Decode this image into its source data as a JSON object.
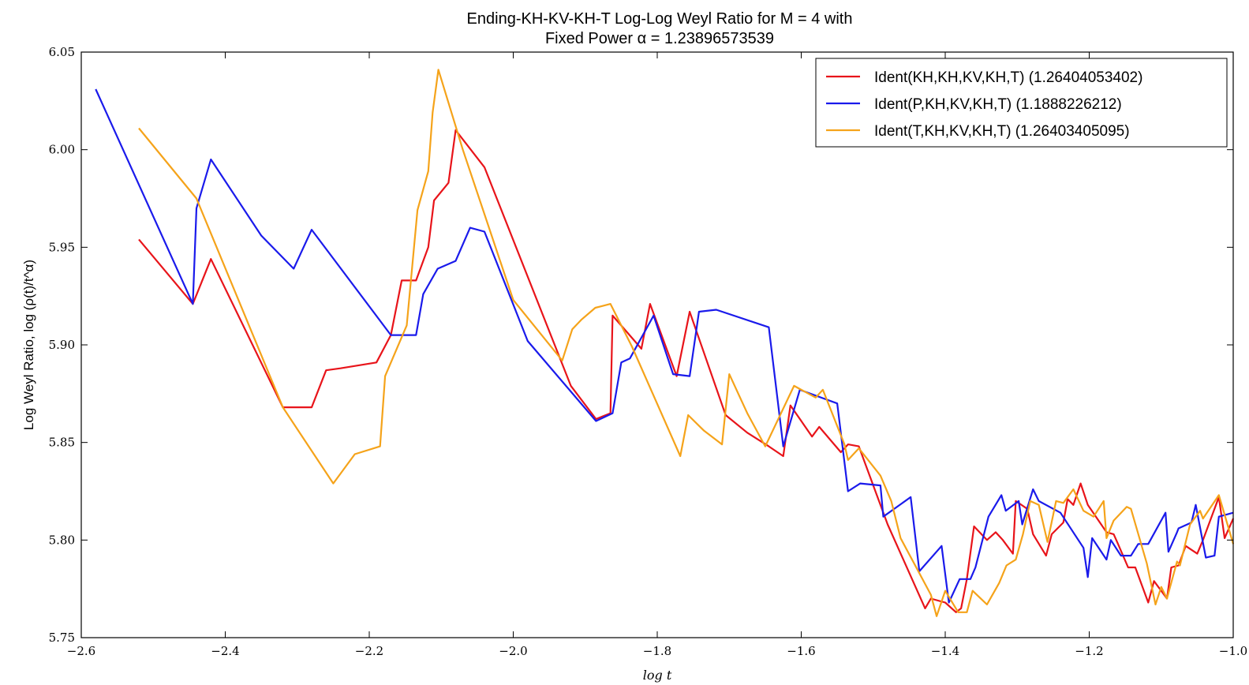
{
  "chart_data": {
    "type": "line",
    "title": "Ending-KH-KV-KH-T Log-Log Weyl Ratio for M = 4 with",
    "subtitle": "Fixed Power α = 1.23896573539",
    "xlabel": "log t",
    "ylabel": "Log Weyl Ratio, log (ρ(t)/t^α)",
    "xlim": [
      -2.6,
      -1.0
    ],
    "ylim": [
      5.75,
      6.05
    ],
    "xticks": [
      -2.6,
      -2.4,
      -2.2,
      -2.0,
      -1.8,
      -1.6,
      -1.4,
      -1.2,
      -1.0
    ],
    "xtick_labels": [
      "−2.6",
      "−2.4",
      "−2.2",
      "−2.0",
      "−1.8",
      "−1.6",
      "−1.4",
      "−1.2",
      "−1.0"
    ],
    "yticks": [
      5.75,
      5.8,
      5.85,
      5.9,
      5.95,
      6.0,
      6.05
    ],
    "ytick_labels": [
      "5.75",
      "5.80",
      "5.85",
      "5.90",
      "5.95",
      "6.00",
      "6.05"
    ],
    "grid": false,
    "legend_position": "top-right",
    "series": [
      {
        "name": "Ident(KH,KH,KV,KH,T) (1.26404053402)",
        "color": "#e8141a",
        "x": [
          -2.52,
          -2.445,
          -2.42,
          -2.32,
          -2.28,
          -2.26,
          -2.24,
          -2.19,
          -2.17,
          -2.155,
          -2.135,
          -2.118,
          -2.11,
          -2.09,
          -2.08,
          -2.04,
          -1.92,
          -1.885,
          -1.865,
          -1.862,
          -1.822,
          -1.81,
          -1.773,
          -1.755,
          -1.705,
          -1.675,
          -1.645,
          -1.625,
          -1.615,
          -1.585,
          -1.575,
          -1.545,
          -1.535,
          -1.52,
          -1.48,
          -1.428,
          -1.42,
          -1.4,
          -1.385,
          -1.378,
          -1.37,
          -1.36,
          -1.342,
          -1.33,
          -1.32,
          -1.306,
          -1.302,
          -1.286,
          -1.278,
          -1.26,
          -1.252,
          -1.236,
          -1.23,
          -1.222,
          -1.212,
          -1.202,
          -1.176,
          -1.166,
          -1.16,
          -1.146,
          -1.136,
          -1.118,
          -1.11,
          -1.092,
          -1.086,
          -1.076,
          -1.066,
          -1.05,
          -1.042,
          -1.02,
          -1.012,
          -1.0
        ],
        "y": [
          5.954,
          5.921,
          5.944,
          5.868,
          5.868,
          5.887,
          5.888,
          5.891,
          5.905,
          5.933,
          5.933,
          5.95,
          5.974,
          5.983,
          6.01,
          5.991,
          5.879,
          5.862,
          5.865,
          5.915,
          5.898,
          5.921,
          5.884,
          5.917,
          5.864,
          5.855,
          5.848,
          5.843,
          5.869,
          5.853,
          5.858,
          5.845,
          5.849,
          5.848,
          5.808,
          5.765,
          5.77,
          5.768,
          5.763,
          5.765,
          5.78,
          5.807,
          5.8,
          5.804,
          5.8,
          5.793,
          5.82,
          5.816,
          5.803,
          5.792,
          5.803,
          5.809,
          5.821,
          5.818,
          5.829,
          5.818,
          5.804,
          5.803,
          5.798,
          5.786,
          5.786,
          5.768,
          5.779,
          5.77,
          5.786,
          5.787,
          5.797,
          5.793,
          5.8,
          5.822,
          5.801,
          5.811
        ]
      },
      {
        "name": "Ident(P,KH,KV,KH,T) (1.1888226212)",
        "color": "#1a1aeb",
        "x": [
          -2.58,
          -2.445,
          -2.44,
          -2.42,
          -2.35,
          -2.305,
          -2.28,
          -2.17,
          -2.135,
          -2.125,
          -2.105,
          -2.08,
          -2.06,
          -2.04,
          -1.98,
          -1.885,
          -1.862,
          -1.85,
          -1.838,
          -1.805,
          -1.778,
          -1.755,
          -1.742,
          -1.718,
          -1.645,
          -1.625,
          -1.602,
          -1.55,
          -1.535,
          -1.518,
          -1.49,
          -1.486,
          -1.448,
          -1.436,
          -1.405,
          -1.395,
          -1.38,
          -1.365,
          -1.358,
          -1.34,
          -1.322,
          -1.316,
          -1.298,
          -1.293,
          -1.278,
          -1.27,
          -1.24,
          -1.208,
          -1.202,
          -1.196,
          -1.176,
          -1.17,
          -1.156,
          -1.142,
          -1.132,
          -1.118,
          -1.094,
          -1.09,
          -1.078,
          -1.076,
          -1.058,
          -1.052,
          -1.038,
          -1.026,
          -1.02,
          -1.0
        ],
        "y": [
          6.031,
          5.921,
          5.97,
          5.995,
          5.956,
          5.939,
          5.959,
          5.905,
          5.905,
          5.926,
          5.939,
          5.943,
          5.96,
          5.958,
          5.902,
          5.861,
          5.865,
          5.891,
          5.893,
          5.915,
          5.885,
          5.884,
          5.917,
          5.918,
          5.909,
          5.848,
          5.877,
          5.87,
          5.825,
          5.829,
          5.828,
          5.812,
          5.822,
          5.784,
          5.797,
          5.768,
          5.78,
          5.78,
          5.786,
          5.812,
          5.823,
          5.815,
          5.82,
          5.808,
          5.826,
          5.82,
          5.814,
          5.796,
          5.781,
          5.801,
          5.79,
          5.8,
          5.792,
          5.792,
          5.798,
          5.798,
          5.814,
          5.794,
          5.804,
          5.806,
          5.809,
          5.818,
          5.791,
          5.792,
          5.812,
          5.814
        ]
      },
      {
        "name": "Ident(T,KH,KV,KH,T) (1.26403405095)",
        "color": "#f5a31a",
        "x": [
          -2.52,
          -2.44,
          -2.32,
          -2.25,
          -2.22,
          -2.185,
          -2.178,
          -2.148,
          -2.133,
          -2.118,
          -2.112,
          -2.104,
          -2.07,
          -2.0,
          -1.932,
          -1.918,
          -1.905,
          -1.886,
          -1.865,
          -1.835,
          -1.768,
          -1.757,
          -1.735,
          -1.71,
          -1.7,
          -1.675,
          -1.65,
          -1.61,
          -1.6,
          -1.58,
          -1.57,
          -1.54,
          -1.535,
          -1.52,
          -1.49,
          -1.475,
          -1.462,
          -1.42,
          -1.412,
          -1.4,
          -1.382,
          -1.37,
          -1.362,
          -1.342,
          -1.325,
          -1.315,
          -1.302,
          -1.292,
          -1.282,
          -1.27,
          -1.258,
          -1.246,
          -1.236,
          -1.222,
          -1.208,
          -1.194,
          -1.18,
          -1.176,
          -1.166,
          -1.148,
          -1.142,
          -1.12,
          -1.108,
          -1.1,
          -1.092,
          -1.078,
          -1.074,
          -1.06,
          -1.046,
          -1.042,
          -1.02,
          -1.0
        ],
        "y": [
          6.011,
          5.975,
          5.868,
          5.829,
          5.844,
          5.848,
          5.884,
          5.91,
          5.969,
          5.989,
          6.019,
          6.041,
          6.0,
          5.923,
          5.892,
          5.908,
          5.913,
          5.919,
          5.921,
          5.899,
          5.843,
          5.864,
          5.856,
          5.849,
          5.885,
          5.865,
          5.848,
          5.879,
          5.877,
          5.873,
          5.877,
          5.849,
          5.841,
          5.847,
          5.833,
          5.82,
          5.801,
          5.772,
          5.761,
          5.774,
          5.763,
          5.763,
          5.774,
          5.767,
          5.778,
          5.787,
          5.79,
          5.803,
          5.82,
          5.818,
          5.799,
          5.82,
          5.819,
          5.826,
          5.815,
          5.812,
          5.82,
          5.801,
          5.81,
          5.817,
          5.816,
          5.788,
          5.767,
          5.776,
          5.77,
          5.789,
          5.787,
          5.808,
          5.815,
          5.811,
          5.823,
          5.798
        ]
      }
    ]
  }
}
